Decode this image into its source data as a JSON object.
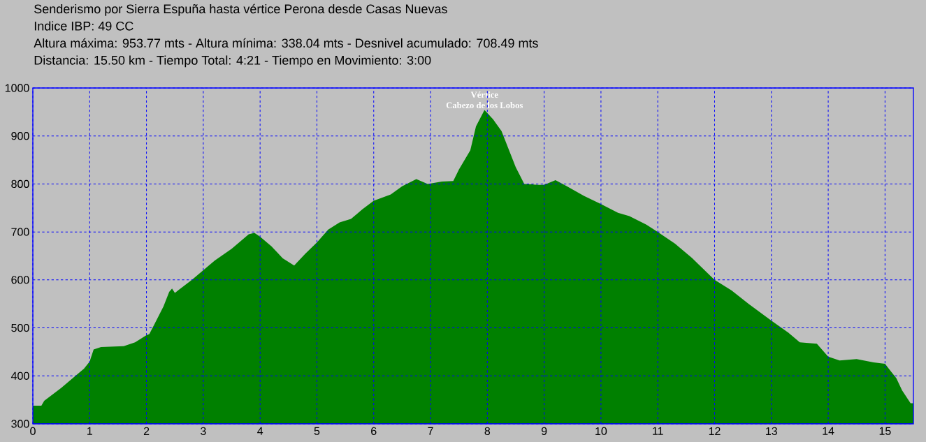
{
  "chart_data": {
    "type": "area",
    "title": "Senderismo por Sierra Espuña hasta vértice Perona desde Casas Nuevas",
    "subtitle": "Indice IBP: 49 CC",
    "annotations": [
      "Altura máxima: 953.77 mts - Altura mínima: 338.04 mts - Desnivel acumulado: 708.49 mts",
      "Distancia: 15.50 km - Tiempo Total: 4:21 -  Tiempo en Movimiento: 3:00",
      {
        "text": "Vértice",
        "x": 7.95,
        "y": 954
      },
      {
        "text": "Cabezo de los Lobos",
        "x": 7.95,
        "y": 954
      }
    ],
    "x": [
      0,
      0.15,
      0.2,
      0.5,
      0.75,
      0.9,
      1.0,
      1.07,
      1.2,
      1.6,
      1.8,
      2.0,
      2.05,
      2.15,
      2.3,
      2.4,
      2.45,
      2.5,
      2.8,
      3.0,
      3.2,
      3.5,
      3.8,
      3.9,
      4.0,
      4.2,
      4.4,
      4.6,
      4.8,
      5.0,
      5.2,
      5.4,
      5.6,
      5.8,
      6.0,
      6.3,
      6.5,
      6.75,
      6.95,
      7.2,
      7.4,
      7.5,
      7.7,
      7.8,
      7.95,
      8.1,
      8.25,
      8.35,
      8.5,
      8.65,
      8.9,
      9.0,
      9.2,
      9.4,
      9.7,
      10.0,
      10.3,
      10.5,
      10.8,
      11.0,
      11.3,
      11.6,
      12.0,
      12.3,
      12.6,
      13.0,
      13.3,
      13.5,
      13.8,
      14.0,
      14.2,
      14.5,
      14.8,
      15.0,
      15.2,
      15.3,
      15.45,
      15.5
    ],
    "values": [
      338,
      338,
      348,
      375,
      400,
      415,
      430,
      455,
      460,
      462,
      470,
      485,
      487,
      510,
      545,
      575,
      582,
      573,
      600,
      620,
      640,
      665,
      695,
      698,
      690,
      670,
      645,
      630,
      655,
      678,
      705,
      720,
      727,
      747,
      765,
      778,
      795,
      810,
      800,
      805,
      806,
      830,
      870,
      920,
      954,
      935,
      910,
      880,
      835,
      800,
      798,
      798,
      808,
      795,
      775,
      758,
      740,
      733,
      715,
      700,
      676,
      646,
      600,
      578,
      550,
      515,
      490,
      470,
      467,
      440,
      432,
      435,
      428,
      425,
      395,
      370,
      343,
      343
    ],
    "color": "#008000",
    "xlim": [
      0,
      15.5
    ],
    "ylim": [
      300,
      1000
    ],
    "xticks": [
      0,
      1,
      2,
      3,
      4,
      5,
      6,
      7,
      8,
      9,
      10,
      11,
      12,
      13,
      14,
      15
    ],
    "yticks": [
      300,
      400,
      500,
      600,
      700,
      800,
      900,
      1000
    ],
    "grid": true
  }
}
